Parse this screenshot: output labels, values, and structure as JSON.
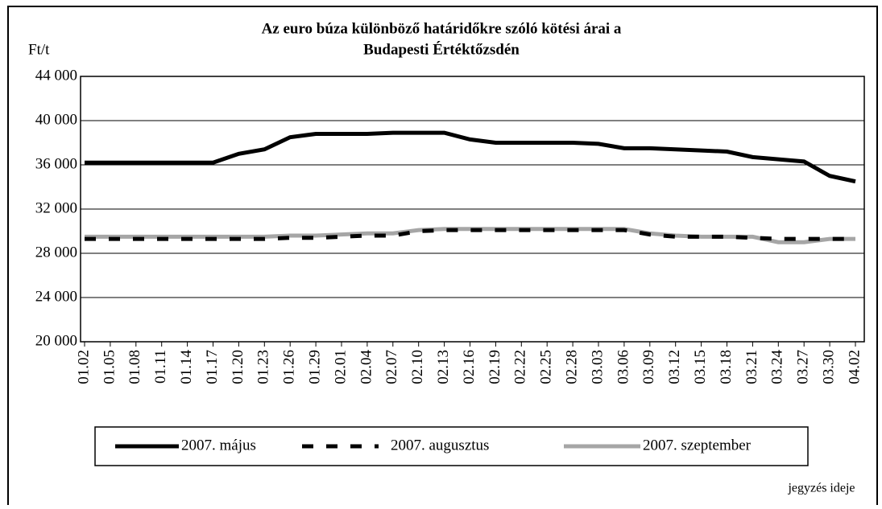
{
  "chart_data": {
    "type": "line",
    "title": [
      "Az euro búza különböző határidőkre szóló kötési árai a",
      "Budapesti Értéktőzsdén"
    ],
    "y_label": "Ft/t",
    "x_label": "jegyzés ideje",
    "categories": [
      "01.02",
      "01.05",
      "01.08",
      "01.11",
      "01.14",
      "01.17",
      "01.20",
      "01.23",
      "01.26",
      "01.29",
      "02.01",
      "02.04",
      "02.07",
      "02.10",
      "02.13",
      "02.16",
      "02.19",
      "02.22",
      "02.25",
      "02.28",
      "03.03",
      "03.06",
      "03.09",
      "03.12",
      "03.15",
      "03.18",
      "03.21",
      "03.24",
      "03.27",
      "03.30",
      "04.02"
    ],
    "series": [
      {
        "name": "2007. május",
        "color": "#000000",
        "style": "solid",
        "values": [
          36200,
          36200,
          36200,
          36200,
          36200,
          36200,
          37000,
          37400,
          38500,
          38800,
          38800,
          38800,
          38900,
          38900,
          38900,
          38300,
          38000,
          38000,
          38000,
          38000,
          37900,
          37500,
          37500,
          37400,
          37300,
          37200,
          36700,
          36500,
          36300,
          35000,
          34500
        ]
      },
      {
        "name": "2007. augusztus",
        "color": "#000000",
        "style": "dashed",
        "values": [
          29300,
          29300,
          29300,
          29300,
          29300,
          29300,
          29300,
          29300,
          29400,
          29400,
          29500,
          29600,
          29600,
          30000,
          30100,
          30100,
          30100,
          30100,
          30100,
          30100,
          30100,
          30100,
          29700,
          29500,
          29500,
          29500,
          29400,
          29300,
          29300,
          29300,
          29300
        ]
      },
      {
        "name": "2007. szeptember",
        "color": "#a6a6a6",
        "style": "solid",
        "values": [
          29500,
          29500,
          29500,
          29500,
          29500,
          29500,
          29500,
          29500,
          29600,
          29600,
          29700,
          29800,
          29800,
          30100,
          30200,
          30200,
          30200,
          30200,
          30200,
          30200,
          30200,
          30200,
          29800,
          29600,
          29500,
          29500,
          29500,
          29000,
          29000,
          29300,
          29300
        ]
      }
    ],
    "ylim": [
      20000,
      44000
    ],
    "yticks": [
      {
        "value": 20000,
        "label": "20 000"
      },
      {
        "value": 24000,
        "label": "24 000"
      },
      {
        "value": 28000,
        "label": "28 000"
      },
      {
        "value": 32000,
        "label": "32 000"
      },
      {
        "value": 36000,
        "label": "36 000"
      },
      {
        "value": 40000,
        "label": "40 000"
      },
      {
        "value": 44000,
        "label": "44 000"
      }
    ],
    "grid": true,
    "legend": "bottom"
  }
}
